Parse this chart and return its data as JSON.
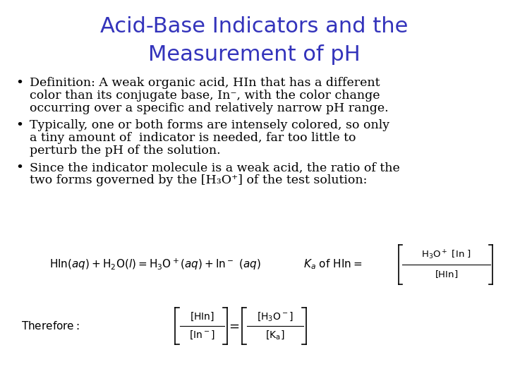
{
  "title_line1": "Acid-Base Indicators and the",
  "title_line2": "Measurement of pH",
  "title_color": "#3333bb",
  "title_fontsize": 22,
  "bg_color": "#ffffff",
  "bullet1_lines": [
    "Definition: A weak organic acid, HIn that has a different",
    "color than its conjugate base, In⁻, with the color change",
    "occurring over a specific and relatively narrow pH range."
  ],
  "bullet2_lines": [
    "Typically, one or both forms are intensely colored, so only",
    "a tiny amount of  indicator is needed, far too little to",
    "perturb the pH of the solution."
  ],
  "bullet3_lines": [
    "Since the indicator molecule is a weak acid, the ratio of the",
    "two forms governed by the [H₃O⁺] of the test solution:"
  ],
  "text_color": "#000000",
  "body_fontsize": 12.5
}
